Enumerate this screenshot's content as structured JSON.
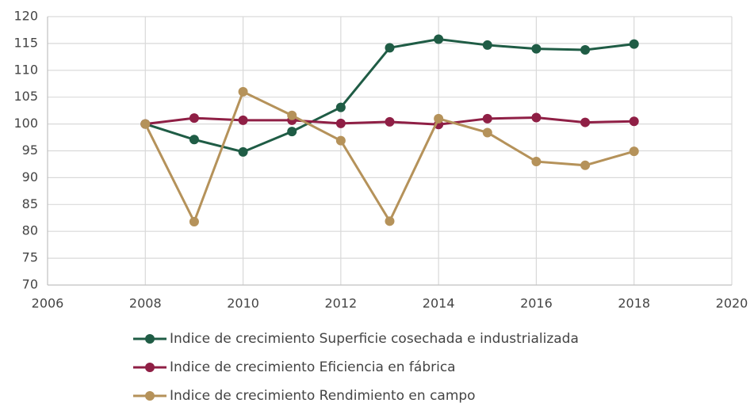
{
  "chart_data": {
    "type": "line",
    "x": [
      2008,
      2009,
      2010,
      2011,
      2012,
      2013,
      2014,
      2015,
      2016,
      2017,
      2018
    ],
    "series": [
      {
        "name": "Indice de crecimiento Superficie cosechada e industrializada",
        "color": "#1f5c45",
        "values": [
          100,
          97.1,
          94.8,
          98.6,
          103.1,
          114.2,
          115.8,
          114.7,
          114.0,
          113.8,
          114.9
        ]
      },
      {
        "name": "Indice de crecimiento Eficiencia en fábrica",
        "color": "#8f1f45",
        "values": [
          100,
          101.1,
          100.7,
          100.7,
          100.1,
          100.4,
          99.9,
          101.0,
          101.2,
          100.3,
          100.5
        ]
      },
      {
        "name": "Indice de crecimiento Rendimiento en campo",
        "color": "#b5925a",
        "values": [
          100,
          81.8,
          106.0,
          101.6,
          96.9,
          81.9,
          101.0,
          98.4,
          93.0,
          92.3,
          94.9
        ]
      }
    ],
    "xlim": [
      2006,
      2020
    ],
    "xticks": [
      2006,
      2008,
      2010,
      2012,
      2014,
      2016,
      2018,
      2020
    ],
    "ylim": [
      70,
      120
    ],
    "yticks": [
      70,
      75,
      80,
      85,
      90,
      95,
      100,
      105,
      110,
      115,
      120
    ],
    "grid": true,
    "legend": "bottom"
  }
}
